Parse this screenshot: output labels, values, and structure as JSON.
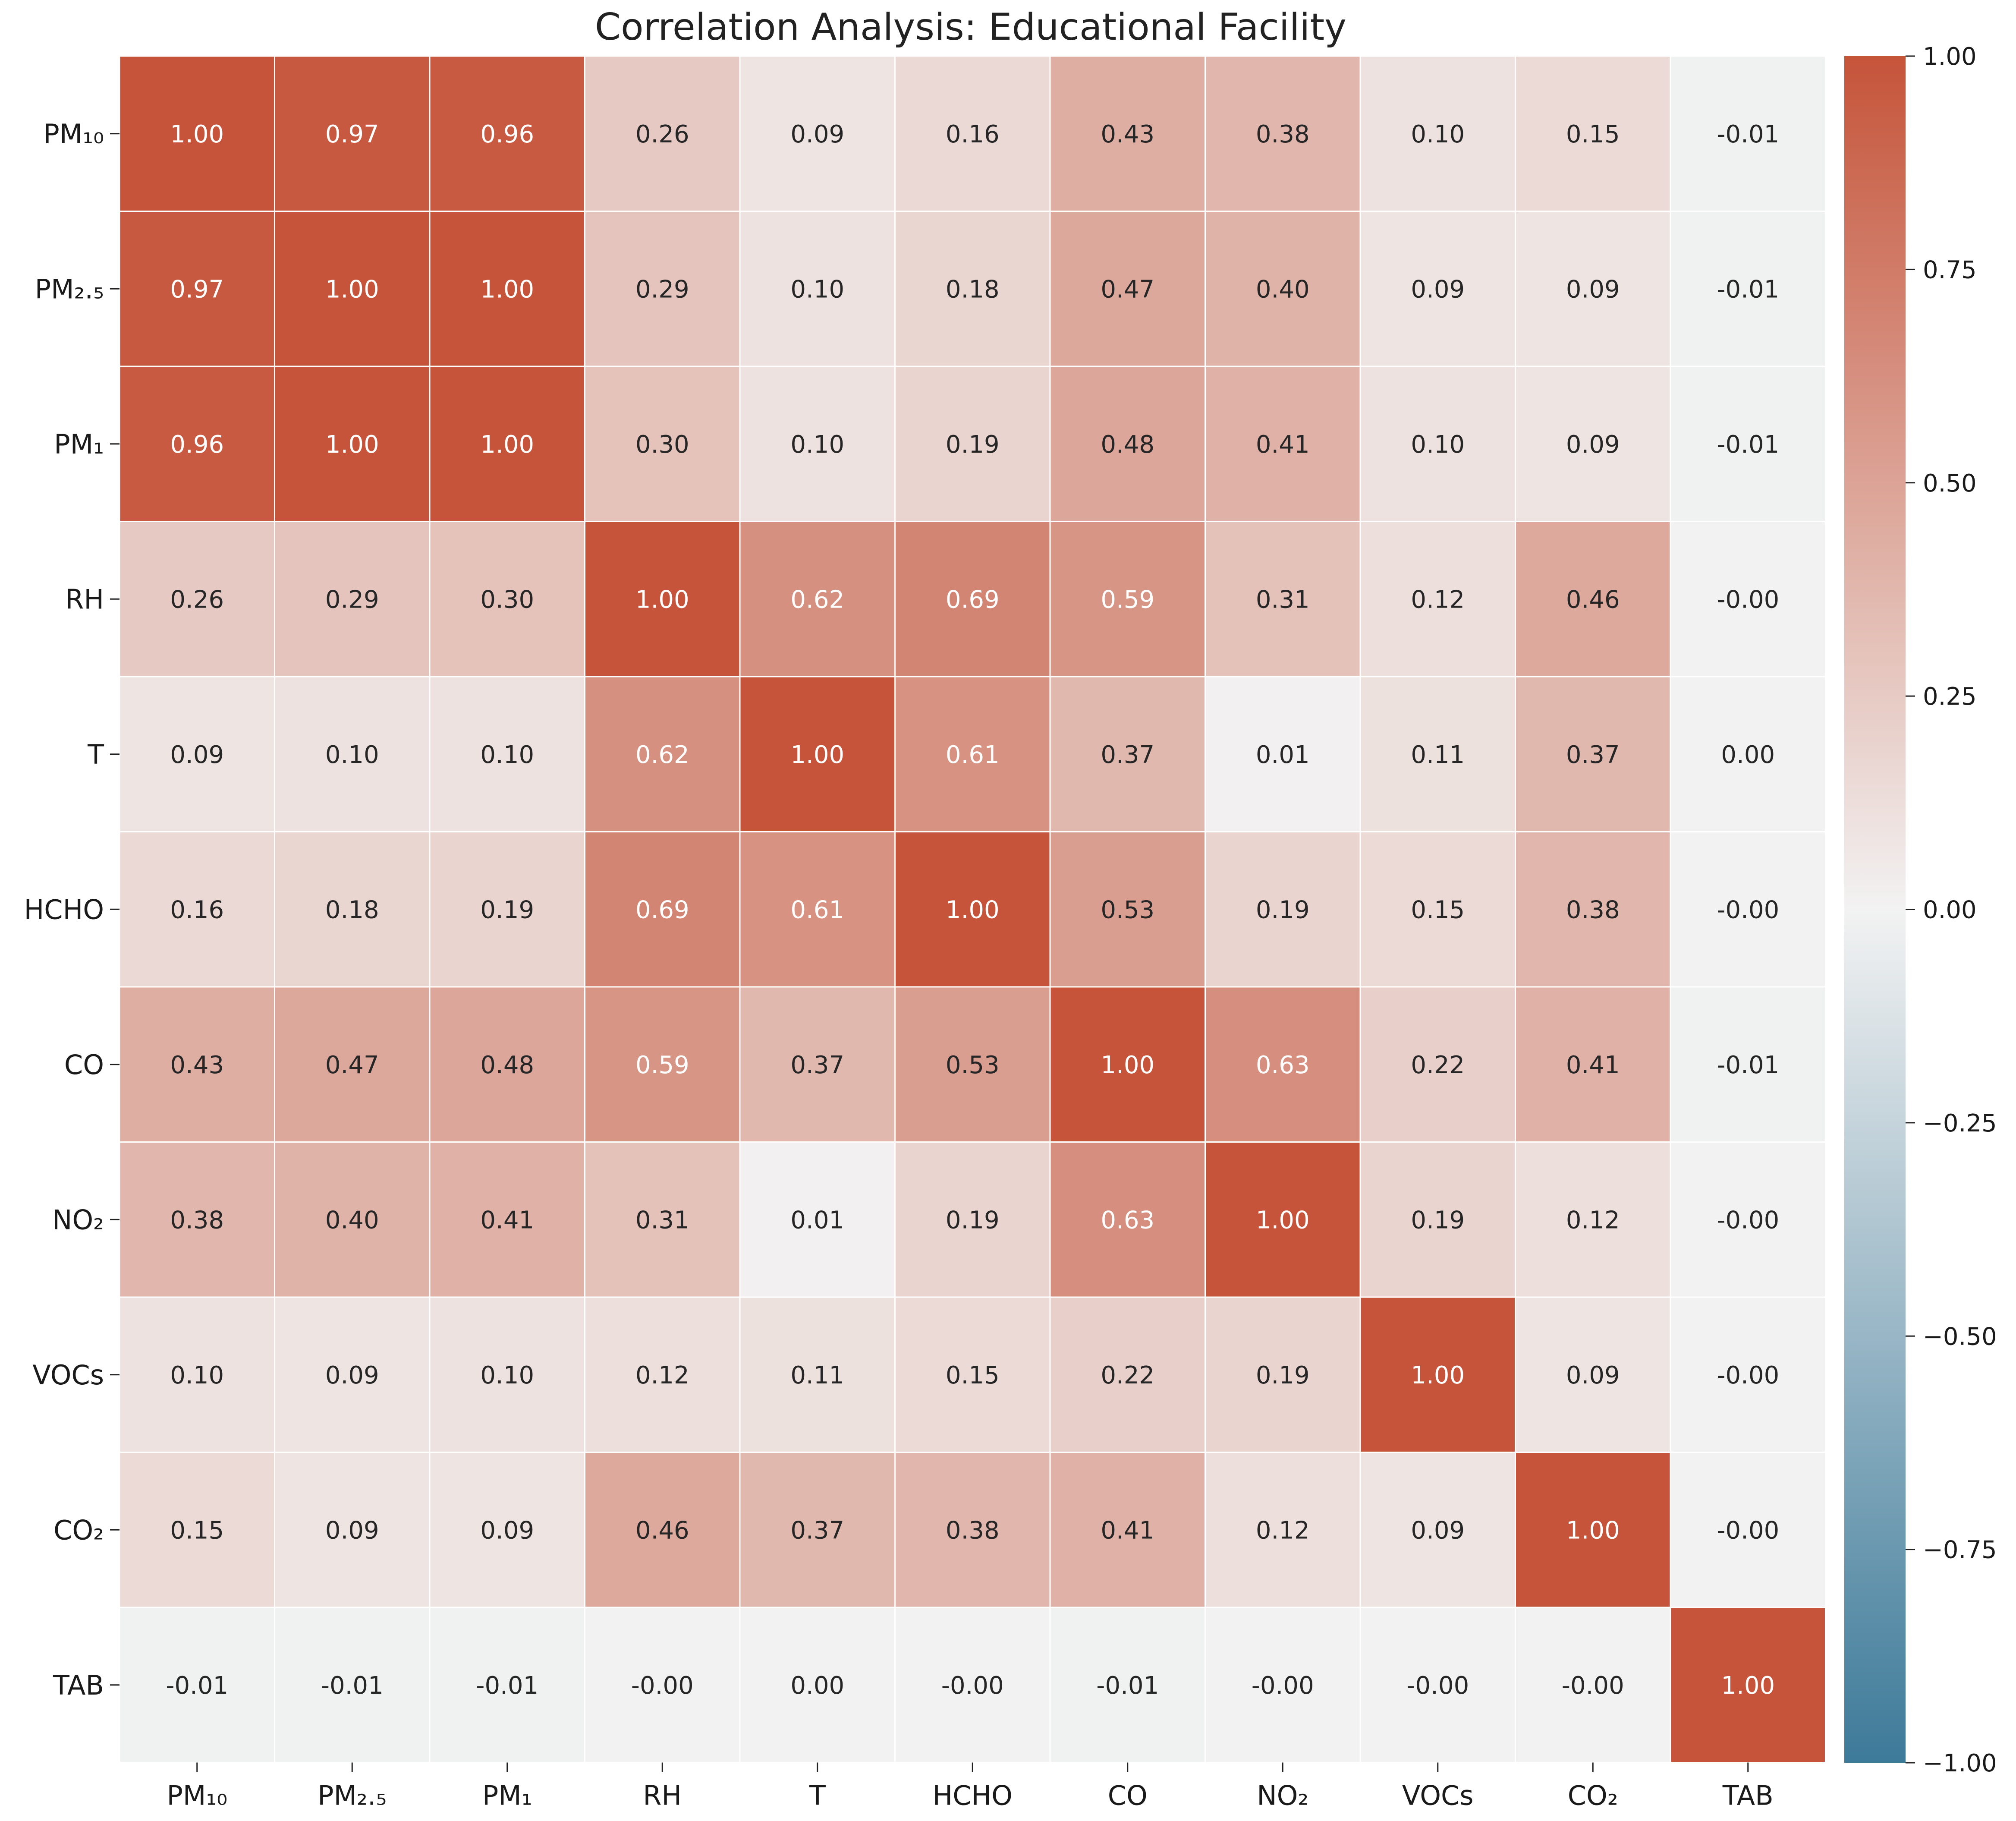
{
  "chart_data": {
    "type": "heatmap",
    "title": "Correlation Analysis: Educational Facility",
    "row_labels": [
      "PM₁₀",
      "PM₂.₅",
      "PM₁",
      "RH",
      "T",
      "HCHO",
      "CO",
      "NO₂",
      "VOCs",
      "CO₂",
      "TAB"
    ],
    "col_labels": [
      "PM₁₀",
      "PM₂.₅",
      "PM₁",
      "RH",
      "T",
      "HCHO",
      "CO",
      "NO₂",
      "VOCs",
      "CO₂",
      "TAB"
    ],
    "values": [
      [
        1.0,
        0.97,
        0.96,
        0.26,
        0.09,
        0.16,
        0.43,
        0.38,
        0.1,
        0.15,
        -0.01
      ],
      [
        0.97,
        1.0,
        1.0,
        0.29,
        0.1,
        0.18,
        0.47,
        0.4,
        0.09,
        0.09,
        -0.01
      ],
      [
        0.96,
        1.0,
        1.0,
        0.3,
        0.1,
        0.19,
        0.48,
        0.41,
        0.1,
        0.09,
        -0.01
      ],
      [
        0.26,
        0.29,
        0.3,
        1.0,
        0.62,
        0.69,
        0.59,
        0.31,
        0.12,
        0.46,
        -0.0
      ],
      [
        0.09,
        0.1,
        0.1,
        0.62,
        1.0,
        0.61,
        0.37,
        0.01,
        0.11,
        0.37,
        0.0
      ],
      [
        0.16,
        0.18,
        0.19,
        0.69,
        0.61,
        1.0,
        0.53,
        0.19,
        0.15,
        0.38,
        -0.0
      ],
      [
        0.43,
        0.47,
        0.48,
        0.59,
        0.37,
        0.53,
        1.0,
        0.63,
        0.22,
        0.41,
        -0.01
      ],
      [
        0.38,
        0.4,
        0.41,
        0.31,
        0.01,
        0.19,
        0.63,
        1.0,
        0.19,
        0.12,
        -0.0
      ],
      [
        0.1,
        0.09,
        0.1,
        0.12,
        0.11,
        0.15,
        0.22,
        0.19,
        1.0,
        0.09,
        -0.0
      ],
      [
        0.15,
        0.09,
        0.09,
        0.46,
        0.37,
        0.38,
        0.41,
        0.12,
        0.09,
        1.0,
        -0.0
      ],
      [
        -0.01,
        -0.01,
        -0.01,
        -0.0,
        0.0,
        -0.0,
        -0.01,
        -0.0,
        -0.0,
        -0.0,
        1.0
      ]
    ],
    "value_format": "2 decimals",
    "vmin": -1.0,
    "vmax": 1.0,
    "colorbar_ticks": [
      "1.00",
      "0.75",
      "0.50",
      "0.25",
      "0.00",
      "−0.25",
      "−0.50",
      "−0.75",
      "−1.00"
    ],
    "colorbar_tick_values": [
      1.0,
      0.75,
      0.5,
      0.25,
      0.0,
      -0.25,
      -0.5,
      -0.75,
      -1.0
    ],
    "colormap": {
      "negative": "#3d7a99",
      "center": "#f2f2f2",
      "positive": "#c5543a"
    },
    "grid": false,
    "colorbar_position": "right"
  }
}
